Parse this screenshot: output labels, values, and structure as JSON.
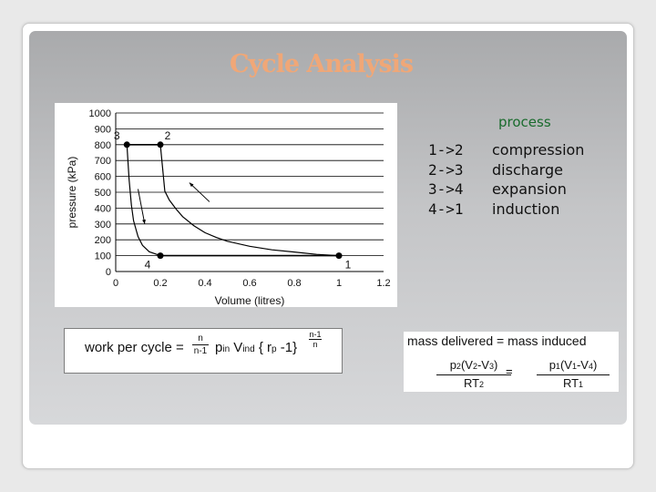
{
  "slide": {
    "title": "Cycle Analysis",
    "colors": {
      "title": "#f0a777",
      "process_header": "#1a6b2d"
    }
  },
  "process_table": {
    "header": "process",
    "rows": [
      {
        "step": "1->2",
        "name": "compression"
      },
      {
        "step": "2->3",
        "name": "discharge"
      },
      {
        "step": "3->4",
        "name": "expansion"
      },
      {
        "step": "4->1",
        "name": "induction"
      }
    ]
  },
  "formulas": {
    "work": {
      "label": "work per cycle =",
      "frac_num": "n",
      "frac_den": "n-1",
      "p": "p",
      "p_sub": "in",
      "v": " V",
      "v_sub": "ind",
      "brace": " { r",
      "r_sub": "p",
      "exp_num": "n-1",
      "exp_den": "n",
      "tail": " -1}"
    },
    "mass": {
      "header": "mass delivered = mass induced",
      "left_num_a": "p",
      "left_num_a_sub": "2",
      "left_num_b": "(V",
      "left_num_b_sub": "2",
      "left_num_c": "-V",
      "left_num_c_sub": "3",
      "left_num_d": ")",
      "left_den": "RT",
      "left_den_sub": "2",
      "equals": "=",
      "right_num_a": "p",
      "right_num_a_sub": "1",
      "right_num_b": "(V",
      "right_num_b_sub": "1",
      "right_num_c": "-V",
      "right_num_c_sub": "4",
      "right_num_d": ")",
      "right_den": "RT",
      "right_den_sub": "1"
    }
  },
  "chart_data": {
    "type": "line",
    "xlabel": "Volume (litres)",
    "ylabel": "pressure (kPa)",
    "xlim": [
      0,
      1.2
    ],
    "ylim": [
      0,
      1000
    ],
    "xticks": [
      "0",
      "0.2",
      "0.4",
      "0.6",
      "0.8",
      "1",
      "1.2"
    ],
    "yticks": [
      "0",
      "100",
      "200",
      "300",
      "400",
      "500",
      "600",
      "700",
      "800",
      "900",
      "1000"
    ],
    "grid": "horizontal",
    "points": [
      {
        "label": "1",
        "x": 1.0,
        "y": 100
      },
      {
        "label": "2",
        "x": 0.2,
        "y": 800
      },
      {
        "label": "3",
        "x": 0.05,
        "y": 800
      },
      {
        "label": "4",
        "x": 0.2,
        "y": 100
      }
    ],
    "curves": {
      "compression_1_2": {
        "x": [
          1.0,
          0.9,
          0.8,
          0.7,
          0.6,
          0.5,
          0.45,
          0.4,
          0.35,
          0.3,
          0.27,
          0.24,
          0.22,
          0.2
        ],
        "y": [
          100,
          108,
          123,
          137,
          159,
          191,
          215,
          245,
          289,
          346,
          394,
          451,
          507,
          800
        ]
      },
      "discharge_2_3": {
        "x": [
          0.2,
          0.05
        ],
        "y": [
          800,
          800
        ]
      },
      "expansion_3_4": {
        "x": [
          0.05,
          0.06,
          0.07,
          0.08,
          0.1,
          0.12,
          0.15,
          0.2
        ],
        "y": [
          800,
          580,
          420,
          320,
          220,
          165,
          125,
          100
        ]
      },
      "induction_4_1": {
        "x": [
          0.2,
          1.0
        ],
        "y": [
          100,
          100
        ]
      }
    }
  }
}
